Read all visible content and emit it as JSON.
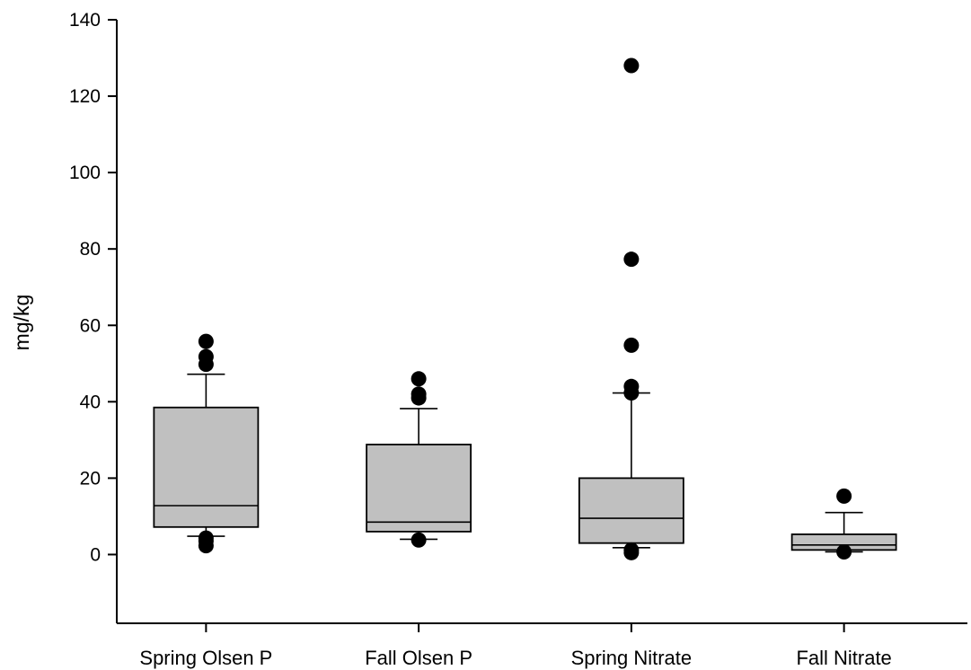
{
  "chart_data": {
    "type": "box",
    "title": "",
    "xlabel": "",
    "ylabel": "mg/kg",
    "ylim": [
      -18,
      140
    ],
    "yticks": [
      0,
      20,
      40,
      60,
      80,
      100,
      120,
      140
    ],
    "grid": false,
    "box_fill": "#c0c0c0",
    "categories": [
      "Spring Olsen P",
      "Fall Olsen P",
      "Spring Nitrate",
      "Fall Nitrate"
    ],
    "boxes": [
      {
        "whisker_low": 4.8,
        "q1": 7.2,
        "median": 12.8,
        "q3": 38.5,
        "whisker_high": 47.2,
        "outliers": [
          2.3,
          3.5,
          4.3,
          49.8,
          51.8,
          55.8
        ]
      },
      {
        "whisker_low": 4.0,
        "q1": 6.0,
        "median": 8.5,
        "q3": 28.8,
        "whisker_high": 38.2,
        "outliers": [
          3.8,
          41.0,
          42.0,
          46.0
        ]
      },
      {
        "whisker_low": 1.8,
        "q1": 3.0,
        "median": 9.5,
        "q3": 20.0,
        "whisker_high": 42.3,
        "outliers": [
          0.5,
          1.2,
          42.3,
          44.0,
          54.8,
          77.3,
          128.0
        ]
      },
      {
        "whisker_low": 0.7,
        "q1": 1.2,
        "median": 2.5,
        "q3": 5.3,
        "whisker_high": 11.0,
        "outliers": [
          0.7,
          15.3
        ]
      }
    ]
  }
}
